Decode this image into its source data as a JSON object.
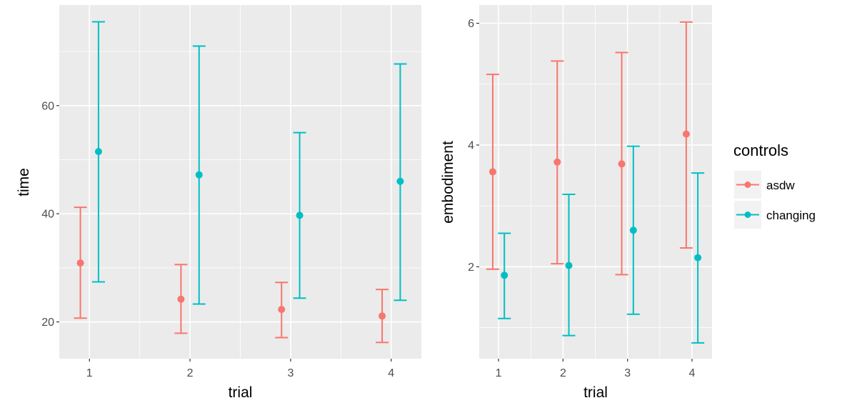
{
  "chart_data": [
    {
      "type": "errorbar",
      "xlabel": "trial",
      "ylabel": "time",
      "x_ticks": [
        "1",
        "2",
        "3",
        "4"
      ],
      "y_ticks": [
        "20",
        "40",
        "60"
      ],
      "ylim": [
        13.2,
        78.6
      ],
      "xlim": [
        0.7,
        4.3
      ],
      "grid": true,
      "series": [
        {
          "name": "asdw",
          "color": "#F8766D",
          "x": [
            1,
            2,
            3,
            4
          ],
          "mean": [
            30.9,
            24.2,
            22.3,
            21.1
          ],
          "upper": [
            41.2,
            30.6,
            27.3,
            26.0
          ],
          "lower": [
            20.7,
            17.9,
            17.1,
            16.2
          ]
        },
        {
          "name": "changing",
          "color": "#00BFC4",
          "x": [
            1,
            2,
            3,
            4
          ],
          "mean": [
            51.5,
            47.2,
            39.7,
            46.0
          ],
          "upper": [
            75.5,
            71.0,
            55.0,
            67.7
          ],
          "lower": [
            27.4,
            23.3,
            24.4,
            24.0
          ]
        }
      ]
    },
    {
      "type": "errorbar",
      "xlabel": "trial",
      "ylabel": "embodiment",
      "x_ticks": [
        "1",
        "2",
        "3",
        "4"
      ],
      "y_ticks": [
        "2",
        "4",
        "6"
      ],
      "ylim": [
        0.49,
        6.3
      ],
      "xlim": [
        0.7,
        4.31
      ],
      "grid": true,
      "series": [
        {
          "name": "asdw",
          "color": "#F8766D",
          "x": [
            1,
            2,
            3,
            4
          ],
          "mean": [
            3.56,
            3.72,
            3.69,
            4.18
          ],
          "upper": [
            5.16,
            5.38,
            5.52,
            6.02
          ],
          "lower": [
            1.96,
            2.05,
            1.87,
            2.31
          ]
        },
        {
          "name": "changing",
          "color": "#00BFC4",
          "x": [
            1,
            2,
            3,
            4
          ],
          "mean": [
            1.86,
            2.02,
            2.6,
            2.15
          ],
          "upper": [
            2.55,
            3.19,
            3.98,
            3.54
          ],
          "lower": [
            1.15,
            0.87,
            1.22,
            0.75
          ]
        }
      ]
    }
  ],
  "legend": {
    "title": "controls",
    "placement": "right",
    "items": [
      {
        "label": "asdw",
        "color": "#F8766D"
      },
      {
        "label": "changing",
        "color": "#00BFC4"
      }
    ]
  }
}
